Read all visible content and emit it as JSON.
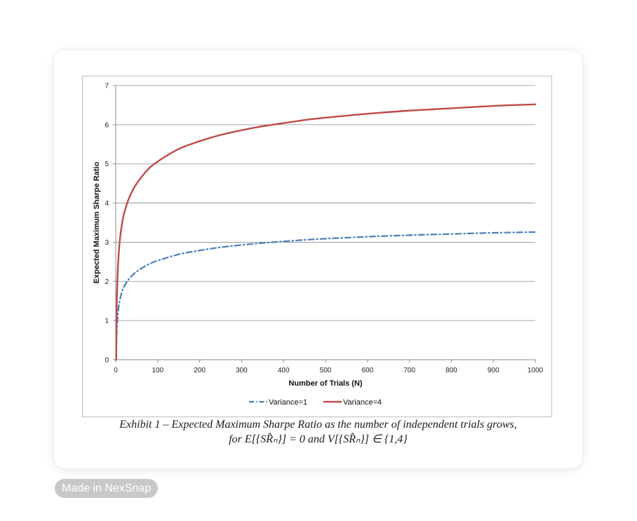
{
  "chart_data": {
    "type": "line",
    "title": "",
    "xlabel": "Number of Trials (N)",
    "ylabel": "Expected Maximum Sharpe Ratio",
    "xlim": [
      0,
      1000
    ],
    "ylim": [
      0,
      7
    ],
    "x_ticks": [
      0,
      100,
      200,
      300,
      400,
      500,
      600,
      700,
      800,
      900,
      1000
    ],
    "y_ticks": [
      0,
      1,
      2,
      3,
      4,
      5,
      6,
      7
    ],
    "grid": true,
    "legend_position": "bottom",
    "series": [
      {
        "name": "Variance=1",
        "color": "#4a7ebb",
        "style": "dash-dot",
        "x": [
          1,
          2,
          3,
          5,
          7,
          10,
          15,
          20,
          30,
          40,
          50,
          75,
          100,
          150,
          200,
          250,
          300,
          350,
          400,
          450,
          500,
          600,
          700,
          800,
          900,
          1000
        ],
        "values": [
          0.0,
          0.55,
          0.85,
          1.16,
          1.35,
          1.54,
          1.74,
          1.87,
          2.04,
          2.16,
          2.25,
          2.42,
          2.53,
          2.69,
          2.79,
          2.87,
          2.93,
          2.98,
          3.02,
          3.06,
          3.09,
          3.14,
          3.18,
          3.21,
          3.24,
          3.26
        ]
      },
      {
        "name": "Variance=4",
        "color": "#be4b48",
        "style": "solid",
        "x": [
          1,
          2,
          3,
          5,
          7,
          10,
          15,
          20,
          30,
          40,
          50,
          75,
          100,
          150,
          200,
          250,
          300,
          350,
          400,
          450,
          500,
          600,
          700,
          800,
          900,
          1000
        ],
        "values": [
          0.0,
          1.1,
          1.7,
          2.32,
          2.7,
          3.08,
          3.48,
          3.74,
          4.08,
          4.32,
          4.5,
          4.84,
          5.06,
          5.38,
          5.58,
          5.74,
          5.86,
          5.96,
          6.04,
          6.12,
          6.18,
          6.28,
          6.36,
          6.42,
          6.48,
          6.52
        ]
      }
    ]
  },
  "caption": {
    "line1": "Exhibit 1 – Expected Maximum Sharpe Ratio as the number of independent trials grows,",
    "line2": "for E[{SR̂ₙ}] = 0 and V[{SR̂ₙ}] ∈ {1,4}"
  },
  "badge": {
    "text": "Made in NexSnap"
  }
}
